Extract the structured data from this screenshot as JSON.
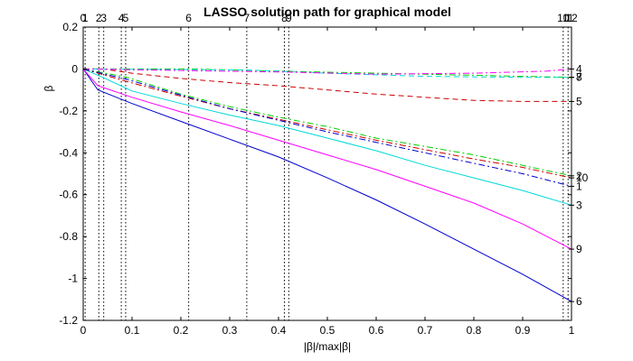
{
  "chart_data": {
    "type": "line",
    "title": "LASSO solution path for graphical model",
    "xlabel": "|β|/max|β|",
    "ylabel": "β",
    "xlim": [
      0,
      1
    ],
    "ylim": [
      -1.2,
      0.2
    ],
    "xticks": [
      0,
      0.1,
      0.2,
      0.3,
      0.4,
      0.5,
      0.6,
      0.7,
      0.8,
      0.9,
      1
    ],
    "xtick_labels": [
      "0",
      "0.1",
      "0.2",
      "0.3",
      "0.4",
      "0.5",
      "0.6",
      "0.7",
      "0.8",
      "0.9",
      "1"
    ],
    "yticks": [
      0.2,
      0,
      -0.2,
      -0.4,
      -0.6,
      -0.8,
      -1,
      -1.2
    ],
    "ytick_labels": [
      "0.2",
      "0",
      "-0.2",
      "-0.4",
      "-0.6",
      "-0.8",
      "-1",
      "-1.2"
    ],
    "grid": false,
    "step_lines": [
      {
        "x": 0.0,
        "label": "0"
      },
      {
        "x": 0.004,
        "label": "1"
      },
      {
        "x": 0.032,
        "label": "2"
      },
      {
        "x": 0.042,
        "label": "3"
      },
      {
        "x": 0.078,
        "label": "4"
      },
      {
        "x": 0.087,
        "label": "5"
      },
      {
        "x": 0.216,
        "label": "6"
      },
      {
        "x": 0.335,
        "label": "7"
      },
      {
        "x": 0.412,
        "label": "8"
      },
      {
        "x": 0.421,
        "label": "9"
      },
      {
        "x": 0.983,
        "label": "10"
      },
      {
        "x": 0.993,
        "label": "11"
      },
      {
        "x": 1.0,
        "label": "12"
      }
    ],
    "series": [
      {
        "end_label": "6",
        "color": "#0000cc",
        "style": "solid",
        "x": [
          0,
          0.03,
          0.1,
          0.2,
          0.3,
          0.4,
          0.5,
          0.6,
          0.7,
          0.8,
          0.9,
          1
        ],
        "y": [
          0,
          -0.1,
          -0.165,
          -0.25,
          -0.335,
          -0.42,
          -0.52,
          -0.625,
          -0.74,
          -0.86,
          -0.98,
          -1.11
        ]
      },
      {
        "end_label": "9",
        "color": "#ff00ff",
        "style": "solid",
        "x": [
          0,
          0.03,
          0.1,
          0.2,
          0.3,
          0.4,
          0.5,
          0.6,
          0.7,
          0.8,
          0.9,
          1
        ],
        "y": [
          0,
          -0.08,
          -0.135,
          -0.205,
          -0.27,
          -0.34,
          -0.41,
          -0.48,
          -0.56,
          -0.64,
          -0.74,
          -0.86
        ]
      },
      {
        "end_label": "3",
        "color": "#00d8d8",
        "style": "solid",
        "x": [
          0,
          0.04,
          0.1,
          0.2,
          0.3,
          0.4,
          0.5,
          0.6,
          0.7,
          0.8,
          0.9,
          1
        ],
        "y": [
          0,
          -0.04,
          -0.105,
          -0.165,
          -0.22,
          -0.27,
          -0.33,
          -0.39,
          -0.46,
          -0.52,
          -0.58,
          -0.65
        ]
      },
      {
        "end_label": "2",
        "color": "#00d000",
        "style": "dashdot",
        "x": [
          0,
          0.09,
          0.2,
          0.3,
          0.4,
          0.5,
          0.6,
          0.7,
          0.8,
          0.9,
          1
        ],
        "y": [
          0,
          -0.04,
          -0.12,
          -0.18,
          -0.23,
          -0.275,
          -0.33,
          -0.37,
          -0.41,
          -0.46,
          -0.51
        ]
      },
      {
        "end_label": "10",
        "color": "#cc0000",
        "style": "dashdot",
        "x": [
          0,
          0.09,
          0.2,
          0.3,
          0.4,
          0.5,
          0.6,
          0.7,
          0.8,
          0.9,
          1
        ],
        "y": [
          0,
          -0.06,
          -0.13,
          -0.19,
          -0.24,
          -0.29,
          -0.34,
          -0.385,
          -0.43,
          -0.47,
          -0.52
        ]
      },
      {
        "end_label": "1",
        "color": "#0000cc",
        "style": "dashdot",
        "x": [
          0,
          0.09,
          0.2,
          0.3,
          0.4,
          0.5,
          0.6,
          0.7,
          0.8,
          0.9,
          1
        ],
        "y": [
          0,
          -0.05,
          -0.125,
          -0.19,
          -0.245,
          -0.3,
          -0.35,
          -0.4,
          -0.45,
          -0.5,
          -0.56
        ]
      },
      {
        "end_label": "5",
        "color": "#cc0000",
        "style": "dashed",
        "x": [
          0,
          0.04,
          0.1,
          0.2,
          0.3,
          0.4,
          0.5,
          0.6,
          0.7,
          0.8,
          0.9,
          1
        ],
        "y": [
          0,
          0,
          -0.02,
          -0.045,
          -0.065,
          -0.08,
          -0.1,
          -0.12,
          -0.135,
          -0.15,
          -0.155,
          -0.155
        ]
      },
      {
        "end_label": "7",
        "color": "#00d000",
        "style": "dashdot",
        "x": [
          0,
          0.22,
          0.4,
          0.6,
          0.8,
          0.9,
          1
        ],
        "y": [
          0,
          0,
          -0.01,
          -0.02,
          -0.03,
          -0.035,
          -0.04
        ]
      },
      {
        "end_label": "8",
        "color": "#00d8d8",
        "style": "dashed",
        "x": [
          0,
          0.34,
          0.5,
          0.7,
          0.9,
          1
        ],
        "y": [
          0,
          -0.005,
          -0.02,
          -0.035,
          -0.04,
          -0.04
        ]
      },
      {
        "end_label": "4",
        "color": "#ff00ff",
        "style": "dashdot",
        "x": [
          0,
          0.42,
          0.6,
          0.8,
          0.95,
          1
        ],
        "y": [
          0,
          -0.015,
          -0.025,
          -0.02,
          -0.01,
          0.0
        ]
      }
    ]
  }
}
